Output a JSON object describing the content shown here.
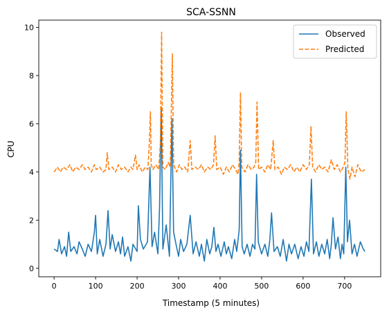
{
  "chart_data": {
    "type": "line",
    "title": "SCA-SSNN",
    "xlabel": "Timestamp (5 minutes)",
    "ylabel": "CPU",
    "xlim": [
      -37,
      787
    ],
    "ylim": [
      -0.35,
      10.3
    ],
    "xticks": [
      0,
      100,
      200,
      300,
      400,
      500,
      600,
      700
    ],
    "yticks": [
      0,
      2,
      4,
      6,
      8,
      10
    ],
    "grid": false,
    "legend_position": "top-right",
    "series": [
      {
        "name": "Observed",
        "color": "#1f77b4",
        "style": "solid",
        "points": [
          [
            0,
            0.8
          ],
          [
            8,
            0.7
          ],
          [
            12,
            1.2
          ],
          [
            18,
            0.6
          ],
          [
            25,
            0.9
          ],
          [
            30,
            0.5
          ],
          [
            35,
            1.5
          ],
          [
            40,
            0.7
          ],
          [
            48,
            0.9
          ],
          [
            55,
            0.6
          ],
          [
            60,
            1.1
          ],
          [
            68,
            0.8
          ],
          [
            75,
            0.5
          ],
          [
            82,
            1.0
          ],
          [
            90,
            0.7
          ],
          [
            97,
            1.5
          ],
          [
            100,
            2.2
          ],
          [
            104,
            0.6
          ],
          [
            110,
            1.2
          ],
          [
            118,
            0.5
          ],
          [
            125,
            1.0
          ],
          [
            130,
            2.4
          ],
          [
            135,
            0.8
          ],
          [
            140,
            1.4
          ],
          [
            148,
            0.7
          ],
          [
            155,
            1.1
          ],
          [
            160,
            0.6
          ],
          [
            165,
            1.3
          ],
          [
            170,
            0.5
          ],
          [
            178,
            0.9
          ],
          [
            185,
            0.3
          ],
          [
            190,
            1.0
          ],
          [
            200,
            0.7
          ],
          [
            203,
            2.6
          ],
          [
            208,
            1.2
          ],
          [
            215,
            0.8
          ],
          [
            225,
            1.1
          ],
          [
            231,
            4.2
          ],
          [
            236,
            0.9
          ],
          [
            242,
            1.5
          ],
          [
            250,
            0.6
          ],
          [
            254,
            2.5
          ],
          [
            258,
            6.7
          ],
          [
            262,
            0.8
          ],
          [
            270,
            1.8
          ],
          [
            278,
            0.5
          ],
          [
            284,
            6.2
          ],
          [
            288,
            1.5
          ],
          [
            295,
            0.9
          ],
          [
            300,
            0.5
          ],
          [
            305,
            1.2
          ],
          [
            312,
            0.7
          ],
          [
            320,
            1.0
          ],
          [
            328,
            2.2
          ],
          [
            335,
            0.6
          ],
          [
            342,
            1.1
          ],
          [
            350,
            0.5
          ],
          [
            355,
            1.0
          ],
          [
            362,
            0.3
          ],
          [
            368,
            1.2
          ],
          [
            375,
            0.6
          ],
          [
            380,
            0.9
          ],
          [
            385,
            1.7
          ],
          [
            390,
            0.7
          ],
          [
            395,
            1.0
          ],
          [
            402,
            0.5
          ],
          [
            410,
            1.1
          ],
          [
            415,
            0.6
          ],
          [
            420,
            0.9
          ],
          [
            428,
            0.4
          ],
          [
            435,
            1.2
          ],
          [
            440,
            0.7
          ],
          [
            446,
            1.6
          ],
          [
            449,
            4.9
          ],
          [
            453,
            0.9
          ],
          [
            458,
            0.6
          ],
          [
            465,
            1.0
          ],
          [
            472,
            0.5
          ],
          [
            478,
            1.0
          ],
          [
            484,
            0.8
          ],
          [
            488,
            3.9
          ],
          [
            492,
            1.1
          ],
          [
            500,
            0.6
          ],
          [
            508,
            1.0
          ],
          [
            515,
            0.5
          ],
          [
            520,
            1.2
          ],
          [
            524,
            2.3
          ],
          [
            530,
            0.7
          ],
          [
            538,
            0.9
          ],
          [
            545,
            0.5
          ],
          [
            552,
            1.2
          ],
          [
            560,
            0.3
          ],
          [
            566,
            1.0
          ],
          [
            572,
            0.6
          ],
          [
            580,
            1.0
          ],
          [
            588,
            0.4
          ],
          [
            595,
            0.9
          ],
          [
            602,
            0.5
          ],
          [
            608,
            1.1
          ],
          [
            614,
            0.7
          ],
          [
            620,
            3.7
          ],
          [
            625,
            0.6
          ],
          [
            632,
            1.1
          ],
          [
            638,
            0.5
          ],
          [
            645,
            1.0
          ],
          [
            652,
            0.6
          ],
          [
            658,
            1.2
          ],
          [
            664,
            0.4
          ],
          [
            668,
            1.0
          ],
          [
            672,
            2.1
          ],
          [
            678,
            0.8
          ],
          [
            684,
            1.3
          ],
          [
            690,
            0.4
          ],
          [
            694,
            1.0
          ],
          [
            698,
            0.6
          ],
          [
            703,
            4.2
          ],
          [
            707,
            1.1
          ],
          [
            712,
            2.0
          ],
          [
            718,
            0.6
          ],
          [
            724,
            1.0
          ],
          [
            730,
            0.5
          ],
          [
            738,
            1.1
          ],
          [
            745,
            0.8
          ],
          [
            749,
            0.7
          ]
        ]
      },
      {
        "name": "Predicted",
        "color": "#ff7f0e",
        "style": "dashed",
        "points": [
          [
            0,
            4.0
          ],
          [
            8,
            4.2
          ],
          [
            15,
            4.0
          ],
          [
            22,
            4.2
          ],
          [
            30,
            4.1
          ],
          [
            38,
            4.3
          ],
          [
            45,
            4.0
          ],
          [
            52,
            4.2
          ],
          [
            60,
            4.1
          ],
          [
            68,
            4.3
          ],
          [
            75,
            4.1
          ],
          [
            82,
            4.2
          ],
          [
            90,
            4.0
          ],
          [
            97,
            4.3
          ],
          [
            102,
            4.1
          ],
          [
            110,
            4.2
          ],
          [
            118,
            4.0
          ],
          [
            125,
            4.1
          ],
          [
            128,
            4.8
          ],
          [
            132,
            4.1
          ],
          [
            140,
            4.2
          ],
          [
            148,
            4.0
          ],
          [
            155,
            4.3
          ],
          [
            162,
            4.1
          ],
          [
            170,
            4.2
          ],
          [
            178,
            4.0
          ],
          [
            185,
            4.2
          ],
          [
            190,
            4.1
          ],
          [
            196,
            4.7
          ],
          [
            200,
            4.1
          ],
          [
            205,
            4.3
          ],
          [
            212,
            4.0
          ],
          [
            220,
            4.2
          ],
          [
            226,
            4.1
          ],
          [
            230,
            5.4
          ],
          [
            232,
            6.5
          ],
          [
            234,
            4.3
          ],
          [
            238,
            4.1
          ],
          [
            245,
            4.3
          ],
          [
            252,
            4.1
          ],
          [
            256,
            5.2
          ],
          [
            259,
            9.8
          ],
          [
            262,
            4.2
          ],
          [
            268,
            4.1
          ],
          [
            275,
            4.4
          ],
          [
            280,
            4.2
          ],
          [
            285,
            8.9
          ],
          [
            288,
            4.3
          ],
          [
            295,
            4.0
          ],
          [
            302,
            4.3
          ],
          [
            308,
            4.1
          ],
          [
            315,
            4.2
          ],
          [
            322,
            4.0
          ],
          [
            328,
            5.3
          ],
          [
            332,
            4.1
          ],
          [
            340,
            4.2
          ],
          [
            348,
            4.1
          ],
          [
            355,
            4.3
          ],
          [
            362,
            4.0
          ],
          [
            370,
            4.2
          ],
          [
            378,
            4.1
          ],
          [
            384,
            4.3
          ],
          [
            388,
            5.5
          ],
          [
            392,
            4.1
          ],
          [
            400,
            4.2
          ],
          [
            408,
            3.9
          ],
          [
            415,
            4.2
          ],
          [
            422,
            4.0
          ],
          [
            430,
            4.3
          ],
          [
            437,
            4.1
          ],
          [
            443,
            3.9
          ],
          [
            446,
            4.4
          ],
          [
            449,
            7.3
          ],
          [
            452,
            4.2
          ],
          [
            460,
            4.0
          ],
          [
            467,
            4.3
          ],
          [
            475,
            4.1
          ],
          [
            482,
            4.2
          ],
          [
            486,
            4.4
          ],
          [
            489,
            6.9
          ],
          [
            493,
            4.1
          ],
          [
            500,
            4.2
          ],
          [
            508,
            4.0
          ],
          [
            515,
            4.3
          ],
          [
            522,
            4.1
          ],
          [
            528,
            5.3
          ],
          [
            532,
            4.1
          ],
          [
            540,
            4.2
          ],
          [
            548,
            3.9
          ],
          [
            555,
            4.2
          ],
          [
            562,
            4.1
          ],
          [
            570,
            4.3
          ],
          [
            578,
            4.0
          ],
          [
            585,
            4.2
          ],
          [
            592,
            4.0
          ],
          [
            600,
            4.3
          ],
          [
            608,
            4.1
          ],
          [
            615,
            4.3
          ],
          [
            619,
            5.9
          ],
          [
            623,
            4.2
          ],
          [
            630,
            4.0
          ],
          [
            638,
            4.3
          ],
          [
            645,
            4.1
          ],
          [
            652,
            4.2
          ],
          [
            660,
            4.0
          ],
          [
            668,
            4.5
          ],
          [
            675,
            4.1
          ],
          [
            682,
            4.3
          ],
          [
            690,
            4.0
          ],
          [
            697,
            4.2
          ],
          [
            701,
            4.4
          ],
          [
            704,
            6.5
          ],
          [
            708,
            4.1
          ],
          [
            713,
            3.7
          ],
          [
            718,
            4.2
          ],
          [
            725,
            3.8
          ],
          [
            732,
            4.3
          ],
          [
            740,
            4.0
          ],
          [
            749,
            4.1
          ]
        ]
      }
    ]
  }
}
